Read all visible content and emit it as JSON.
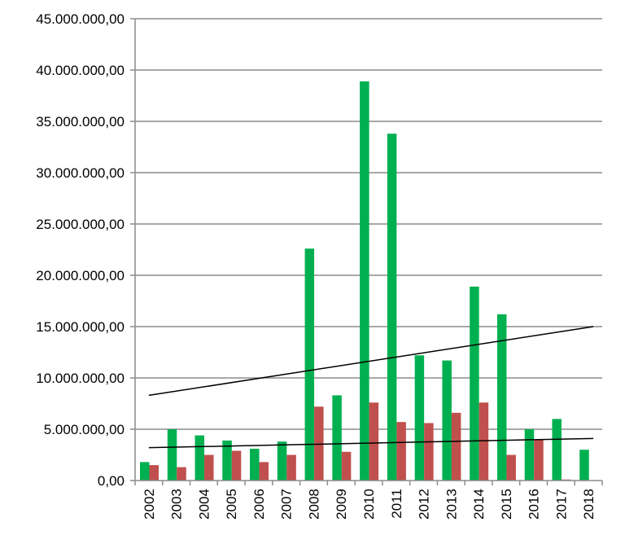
{
  "chart_data": {
    "type": "bar",
    "title": "",
    "xlabel": "",
    "ylabel": "",
    "ylim": [
      0,
      45000000
    ],
    "ytick_step": 5000000,
    "yticks": [
      "0,00",
      "5.000.000,00",
      "10.000.000,00",
      "15.000.000,00",
      "20.000.000,00",
      "25.000.000,00",
      "30.000.000,00",
      "35.000.000,00",
      "40.000.000,00",
      "45.000.000,00"
    ],
    "grid": true,
    "legend": "none",
    "categories": [
      "2002",
      "2003",
      "2004",
      "2005",
      "2006",
      "2007",
      "2008",
      "2009",
      "2010",
      "2011",
      "2012",
      "2013",
      "2014",
      "2015",
      "2016",
      "2017",
      "2018"
    ],
    "series": [
      {
        "name": "green",
        "color": "#00b050",
        "values": [
          1800000,
          5000000,
          4400000,
          3900000,
          3100000,
          3800000,
          22600000,
          8300000,
          38900000,
          33800000,
          12200000,
          11700000,
          18900000,
          16200000,
          5000000,
          6000000,
          3000000
        ]
      },
      {
        "name": "red",
        "color": "#c0504d",
        "values": [
          1500000,
          1300000,
          2500000,
          2900000,
          1800000,
          2500000,
          7200000,
          2800000,
          7600000,
          5700000,
          5600000,
          6600000,
          7600000,
          2500000,
          4000000,
          100000,
          0
        ]
      }
    ],
    "trendlines": [
      {
        "series": "green",
        "type": "linear",
        "start": 8300000,
        "end": 15000000,
        "color": "#000000"
      },
      {
        "series": "red",
        "type": "linear",
        "start": 3200000,
        "end": 4100000,
        "color": "#000000"
      }
    ]
  }
}
